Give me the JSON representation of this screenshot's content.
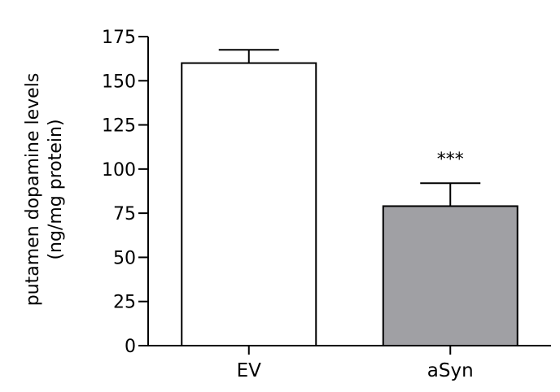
{
  "chart_data": {
    "type": "bar",
    "title": "",
    "xlabel": "",
    "ylabel": "putamen dopamine levels",
    "ylabel_line2": "(ng/mg protein)",
    "categories": [
      "EV",
      "aSyn"
    ],
    "values": [
      160,
      79
    ],
    "errors": [
      7.5,
      13
    ],
    "bar_colors": [
      "#ffffff",
      "#a0a0a4"
    ],
    "annotations": [
      "",
      "***"
    ],
    "ylim": [
      0,
      175
    ],
    "yticks": [
      0,
      25,
      50,
      75,
      100,
      125,
      150,
      175
    ],
    "grid": false,
    "legend": "none"
  }
}
